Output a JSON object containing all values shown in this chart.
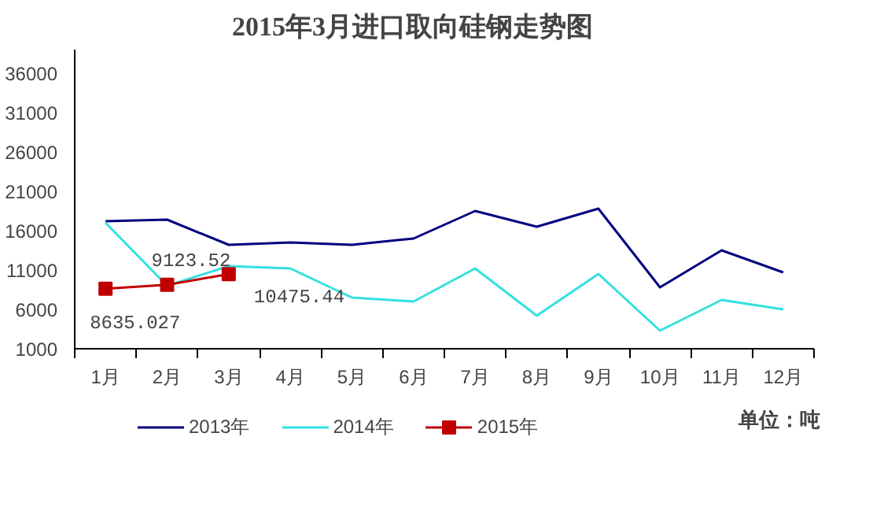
{
  "chart_data": {
    "type": "line",
    "title": "2015年3月进口取向硅钢走势图",
    "categories": [
      "1月",
      "2月",
      "3月",
      "4月",
      "5月",
      "6月",
      "7月",
      "8月",
      "9月",
      "10月",
      "11月",
      "12月"
    ],
    "series": [
      {
        "name": "2013年",
        "color": "#000080",
        "values": [
          17200,
          17400,
          14200,
          14500,
          14200,
          15000,
          18500,
          16500,
          18800,
          8800,
          13500,
          10700
        ]
      },
      {
        "name": "2014年",
        "color": "#33e0e0",
        "values": [
          17000,
          9000,
          11500,
          11200,
          7500,
          7000,
          11200,
          5200,
          10500,
          3300,
          7200,
          6000
        ]
      },
      {
        "name": "2015年",
        "color": "#c00000",
        "marker": "square",
        "values": [
          8635.027,
          9123.52,
          10475.44,
          null,
          null,
          null,
          null,
          null,
          null,
          null,
          null,
          null
        ],
        "value_labels": [
          "8635.027",
          "9123.52",
          "10475.44",
          null,
          null,
          null,
          null,
          null,
          null,
          null,
          null,
          null
        ]
      }
    ],
    "ylim": [
      1000,
      39000
    ],
    "yticks": [
      1000,
      6000,
      11000,
      16000,
      21000,
      26000,
      31000,
      36000
    ],
    "grid": false,
    "legend": "bottom",
    "annotations": [
      "单位：吨"
    ]
  }
}
